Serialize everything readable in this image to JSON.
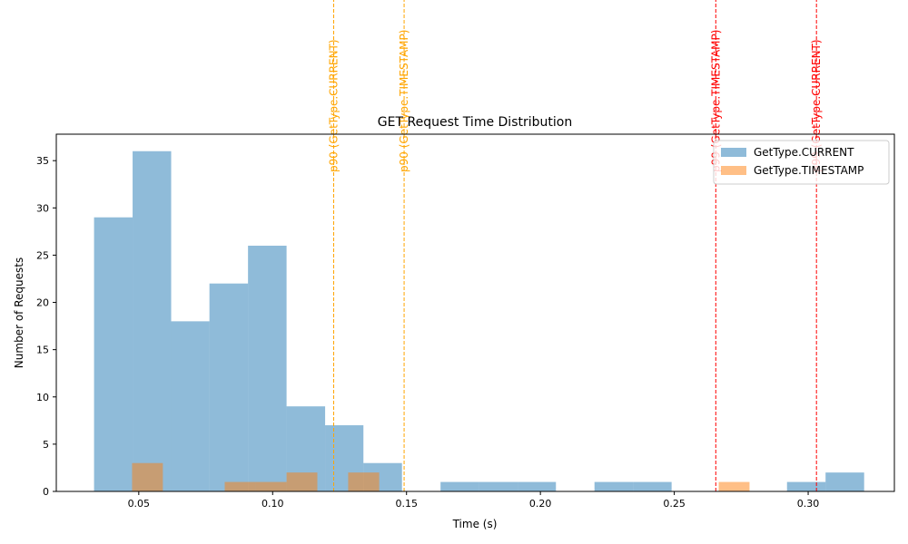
{
  "chart_data": {
    "type": "bar",
    "title": "GET Request Time Distribution",
    "xlabel": "Time (s)",
    "ylabel": "Number of Requests",
    "xlim": [
      0.0192,
      0.3322
    ],
    "ylim": [
      0,
      37.8
    ],
    "xticks": [
      0.05,
      0.1,
      0.15,
      0.2,
      0.25,
      0.3
    ],
    "xtick_labels": [
      "0.05",
      "0.10",
      "0.15",
      "0.20",
      "0.25",
      "0.30"
    ],
    "yticks": [
      0,
      5,
      10,
      15,
      20,
      25,
      30,
      35
    ],
    "ytick_labels": [
      "0",
      "5",
      "10",
      "15",
      "20",
      "25",
      "30",
      "35"
    ],
    "grid": false,
    "legend_position": "top-right",
    "series": [
      {
        "name": "GetType.CURRENT",
        "color": "#1f77b4",
        "opacity": 0.5,
        "bin_edges": [
          0.0333,
          0.0477,
          0.0621,
          0.0764,
          0.0908,
          0.1052,
          0.1196,
          0.1339,
          0.1483,
          0.1627,
          0.1771,
          0.1915,
          0.2058,
          0.2202,
          0.2346,
          0.249,
          0.2633,
          0.2777,
          0.2921,
          0.3065,
          0.3209
        ],
        "values": [
          29,
          36,
          18,
          22,
          26,
          9,
          7,
          3,
          0,
          1,
          1,
          1,
          0,
          1,
          1,
          0,
          0,
          0,
          1,
          2
        ]
      },
      {
        "name": "GetType.TIMESTAMP",
        "color": "#ff7f0e",
        "opacity": 0.5,
        "bin_edges": [
          0.0475,
          0.059,
          0.0706,
          0.0821,
          0.0936,
          0.1052,
          0.1167,
          0.1282,
          0.1398,
          0.1513,
          0.1628,
          0.1743,
          0.1859,
          0.1974,
          0.2089,
          0.2205,
          0.232,
          0.2435,
          0.2551,
          0.2666,
          0.2781
        ],
        "values": [
          3,
          0,
          0,
          1,
          1,
          2,
          0,
          2,
          0,
          0,
          0,
          0,
          0,
          0,
          0,
          0,
          0,
          0,
          0,
          1
        ]
      }
    ],
    "vlines": [
      {
        "x": 0.1228,
        "label": "p90 (GetType.CURRENT)",
        "color": "#ffa500"
      },
      {
        "x": 0.1491,
        "label": "p90 (GetType.TIMESTAMP)",
        "color": "#ffa500"
      },
      {
        "x": 0.2655,
        "label": "p99 (GetType.TIMESTAMP)",
        "color": "#ff0000"
      },
      {
        "x": 0.3031,
        "label": "p99 (GetType.CURRENT)",
        "color": "#ff0000"
      }
    ]
  }
}
